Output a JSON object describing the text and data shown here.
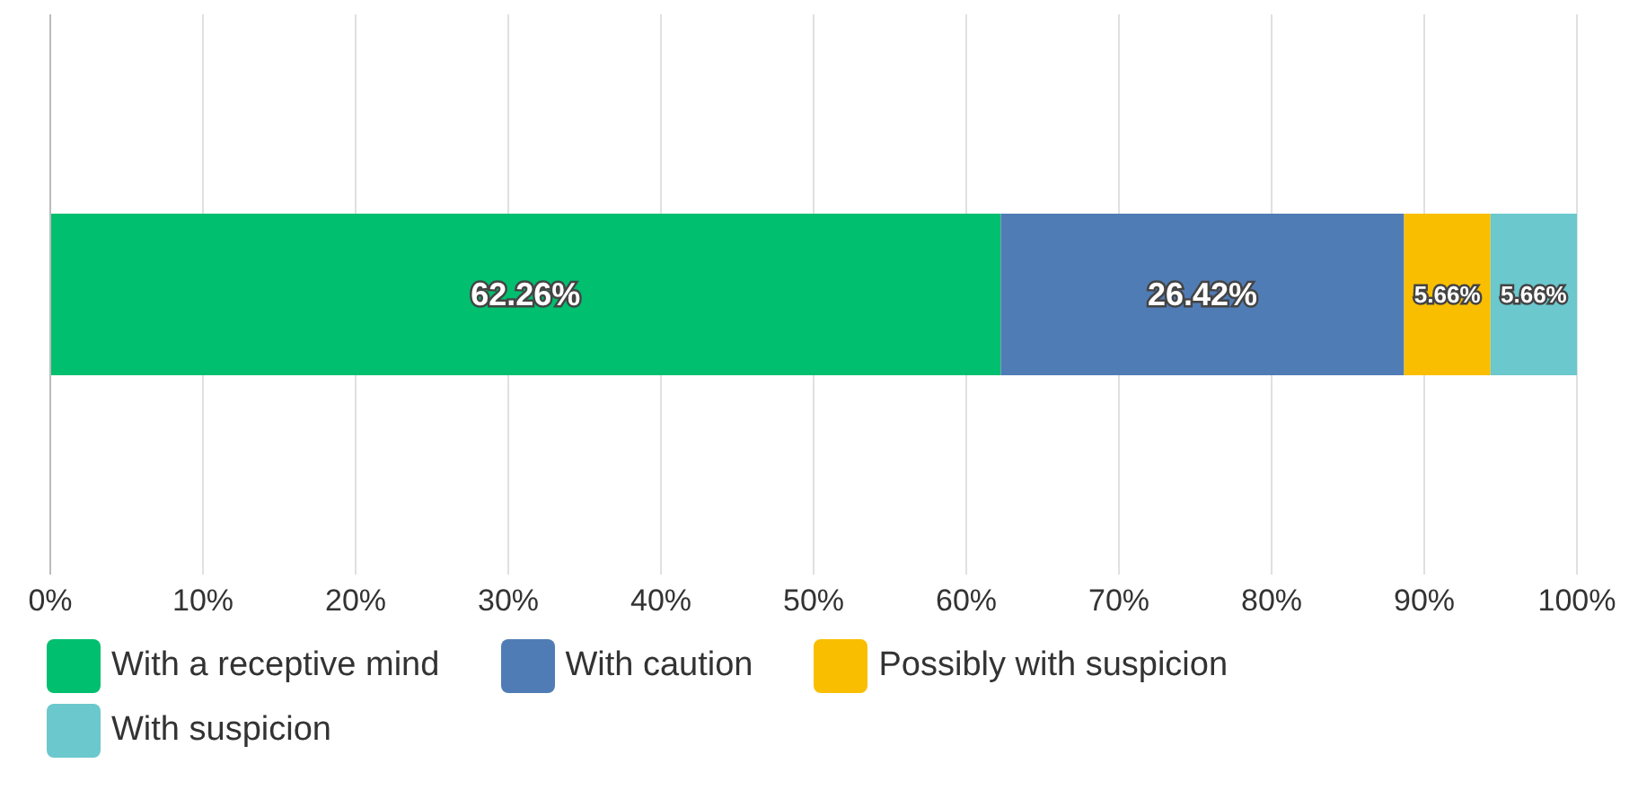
{
  "chart_data": {
    "type": "bar",
    "orientation": "horizontal",
    "stacked": true,
    "categories": [
      null
    ],
    "series": [
      {
        "name": "With a receptive mind",
        "color": "#00bf6f",
        "values": [
          62.26
        ],
        "value_labels": [
          "62.26%"
        ]
      },
      {
        "name": "With caution",
        "color": "#507cb6",
        "values": [
          26.42
        ],
        "value_labels": [
          "26.42%"
        ]
      },
      {
        "name": "Possibly with suspicion",
        "color": "#f9be00",
        "values": [
          5.66
        ],
        "value_labels": [
          "5.66%"
        ]
      },
      {
        "name": "With suspicion",
        "color": "#6bc8cd",
        "values": [
          5.66
        ],
        "value_labels": [
          "5.66%"
        ]
      }
    ],
    "xlim": [
      0,
      100
    ],
    "xticks": [
      {
        "value": 0,
        "label": "0%"
      },
      {
        "value": 10,
        "label": "10%"
      },
      {
        "value": 20,
        "label": "20%"
      },
      {
        "value": 30,
        "label": "30%"
      },
      {
        "value": 40,
        "label": "40%"
      },
      {
        "value": 50,
        "label": "50%"
      },
      {
        "value": 60,
        "label": "60%"
      },
      {
        "value": 70,
        "label": "70%"
      },
      {
        "value": 80,
        "label": "80%"
      },
      {
        "value": 90,
        "label": "90%"
      },
      {
        "value": 100,
        "label": "100%"
      }
    ],
    "grid": "x",
    "legend": "bottom"
  }
}
